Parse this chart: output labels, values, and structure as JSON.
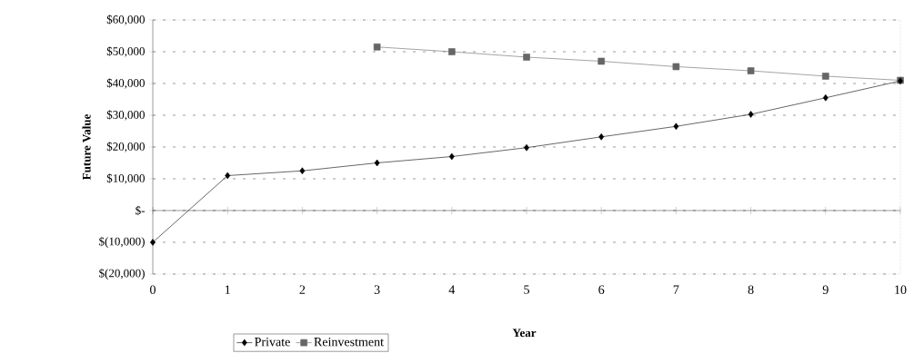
{
  "chart_data": {
    "type": "line",
    "xlabel": "Year",
    "ylabel": "Future Value",
    "x": [
      0,
      1,
      2,
      3,
      4,
      5,
      6,
      7,
      8,
      9,
      10
    ],
    "series": [
      {
        "name": "Private",
        "color": "#000000",
        "marker": "diamond",
        "values": [
          -10000,
          11000,
          12500,
          15000,
          17000,
          19800,
          23200,
          26500,
          30300,
          35500,
          40800
        ]
      },
      {
        "name": "Reinvestment",
        "color": "#666666",
        "marker": "square",
        "values": [
          null,
          null,
          null,
          51500,
          50000,
          48300,
          47000,
          45300,
          44000,
          42300,
          41000
        ]
      }
    ],
    "xlim": [
      0,
      10
    ],
    "xticks": [
      0,
      1,
      2,
      3,
      4,
      5,
      6,
      7,
      8,
      9,
      10
    ],
    "ylim": [
      -20000,
      60000
    ],
    "yticks": [
      {
        "value": -20000,
        "label": "$(20,000)"
      },
      {
        "value": -10000,
        "label": "$(10,000)"
      },
      {
        "value": 0,
        "label": "$-"
      },
      {
        "value": 10000,
        "label": "$10,000"
      },
      {
        "value": 20000,
        "label": "$20,000"
      },
      {
        "value": 30000,
        "label": "$30,000"
      },
      {
        "value": 40000,
        "label": "$40,000"
      },
      {
        "value": 50000,
        "label": "$50,000"
      },
      {
        "value": 60000,
        "label": "$60,000"
      }
    ],
    "grid": "y",
    "legend": "bottom",
    "line_style": "solid"
  }
}
